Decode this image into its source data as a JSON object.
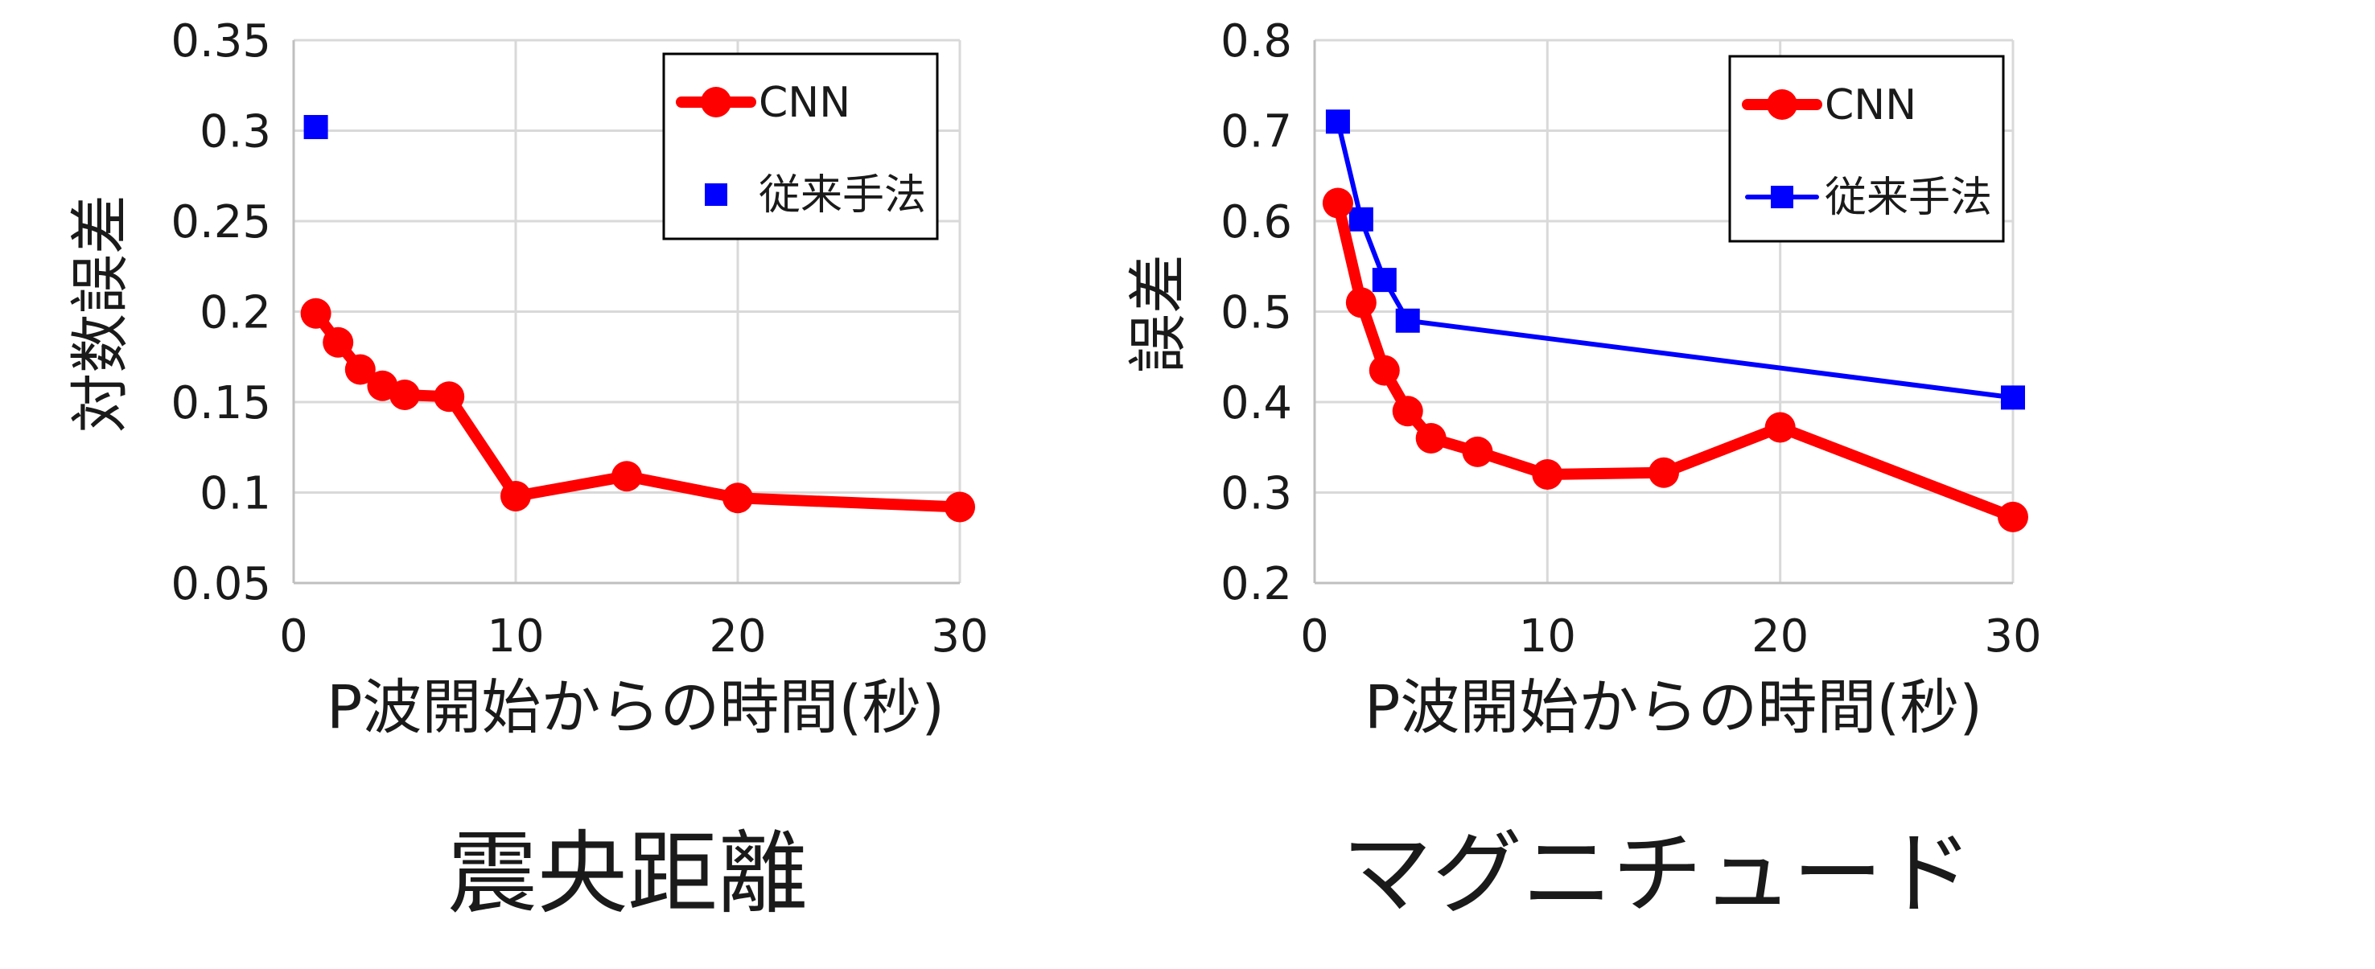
{
  "chart_data": [
    {
      "type": "line",
      "caption": "震央距離",
      "xlabel": "P波開始からの時間(秒)",
      "ylabel": "対数誤差",
      "xlim": [
        0,
        30
      ],
      "ylim": [
        0.05,
        0.35
      ],
      "xticks": [
        "0",
        "10",
        "20",
        "30"
      ],
      "yticks": [
        "0.05",
        "0.1",
        "0.15",
        "0.2",
        "0.25",
        "0.3",
        "0.35"
      ],
      "grid": true,
      "legend_position": "top-right",
      "series": [
        {
          "name": "CNN",
          "color": "#ff0000",
          "marker": "circle",
          "line": true,
          "x": [
            1,
            2,
            3,
            4,
            5,
            7,
            10,
            15,
            20,
            30
          ],
          "y": [
            0.199,
            0.183,
            0.168,
            0.159,
            0.154,
            0.153,
            0.098,
            0.109,
            0.097,
            0.092
          ]
        },
        {
          "name": "従来手法",
          "color": "#0000ff",
          "marker": "square",
          "line": false,
          "x": [
            1
          ],
          "y": [
            0.302
          ]
        }
      ]
    },
    {
      "type": "line",
      "caption": "マグニチュード",
      "xlabel": "P波開始からの時間(秒)",
      "ylabel": "誤差",
      "xlim": [
        0,
        30
      ],
      "ylim": [
        0.2,
        0.8
      ],
      "xticks": [
        "0",
        "10",
        "20",
        "30"
      ],
      "yticks": [
        "0.2",
        "0.3",
        "0.4",
        "0.5",
        "0.6",
        "0.7",
        "0.8"
      ],
      "grid": true,
      "legend_position": "top-right",
      "series": [
        {
          "name": "CNN",
          "color": "#ff0000",
          "marker": "circle",
          "line": true,
          "x": [
            1,
            2,
            3,
            4,
            5,
            7,
            10,
            15,
            20,
            30
          ],
          "y": [
            0.62,
            0.51,
            0.435,
            0.39,
            0.36,
            0.345,
            0.32,
            0.322,
            0.372,
            0.273
          ]
        },
        {
          "name": "従来手法",
          "color": "#0000ff",
          "marker": "square",
          "line": true,
          "x": [
            1,
            2,
            3,
            4,
            30
          ],
          "y": [
            0.71,
            0.602,
            0.535,
            0.49,
            0.405
          ]
        }
      ]
    }
  ]
}
